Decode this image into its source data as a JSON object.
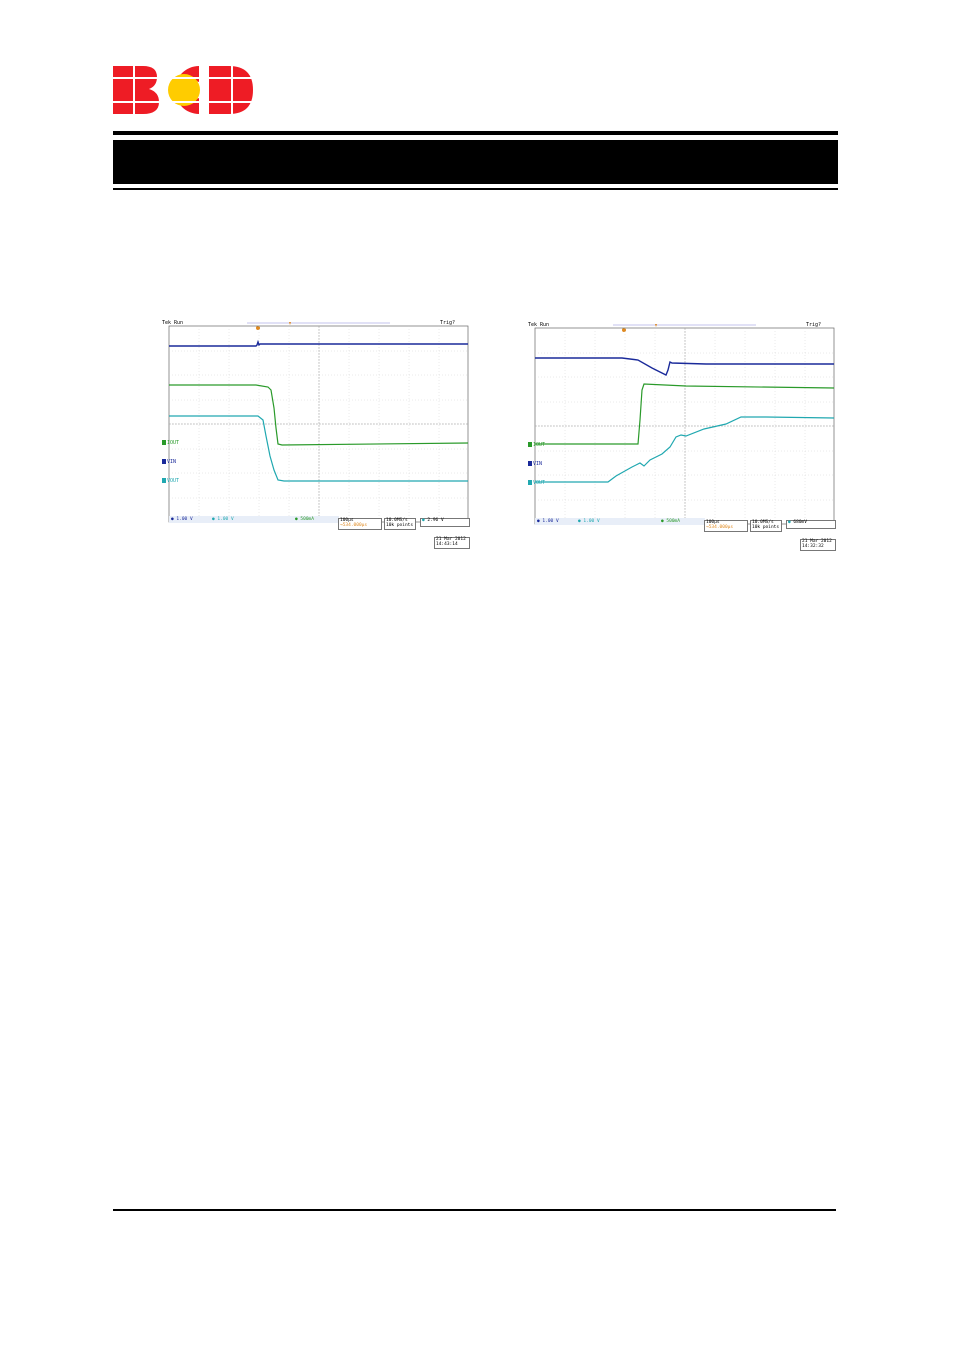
{
  "logo": {
    "text": "BCD",
    "colors": {
      "red": "#ee1c25",
      "yellow": "#ffcc00"
    }
  },
  "scopes": [
    {
      "header_left": "Tek Run",
      "header_right": "Trig?",
      "channels": [
        {
          "label": "IOUT",
          "number": "4",
          "color": "#2a9a2a"
        },
        {
          "label": "VIN",
          "number": "1",
          "color": "#1a2a9a"
        },
        {
          "label": "VOUT",
          "number": "2",
          "color": "#20a8b0"
        }
      ],
      "ch1_scale": "1.00 V",
      "ch2_scale": "1.00 V",
      "ch4_scale": "500mA",
      "timebase": "100µs",
      "trigger_pos": "→534.000µs",
      "sample_rate": "10.0MS/s",
      "record_length": "10k points",
      "trigger_level": "2.96 V",
      "date": "21 Mar 2012",
      "time": "14:43:14"
    },
    {
      "header_left": "Tek Run",
      "header_right": "Trig?",
      "channels": [
        {
          "label": "IOUT",
          "number": "4",
          "color": "#2a9a2a"
        },
        {
          "label": "VIN",
          "number": "1",
          "color": "#1a2a9a"
        },
        {
          "label": "VOUT",
          "number": "2",
          "color": "#20a8b0"
        }
      ],
      "ch1_scale": "1.00 V",
      "ch2_scale": "1.00 V",
      "ch4_scale": "500mA",
      "timebase": "100µs",
      "trigger_pos": "→534.000µs",
      "sample_rate": "10.0MS/s",
      "record_length": "10k points",
      "trigger_level": "680mV",
      "date": "21 Mar 2012",
      "time": "14:32:32"
    }
  ]
}
